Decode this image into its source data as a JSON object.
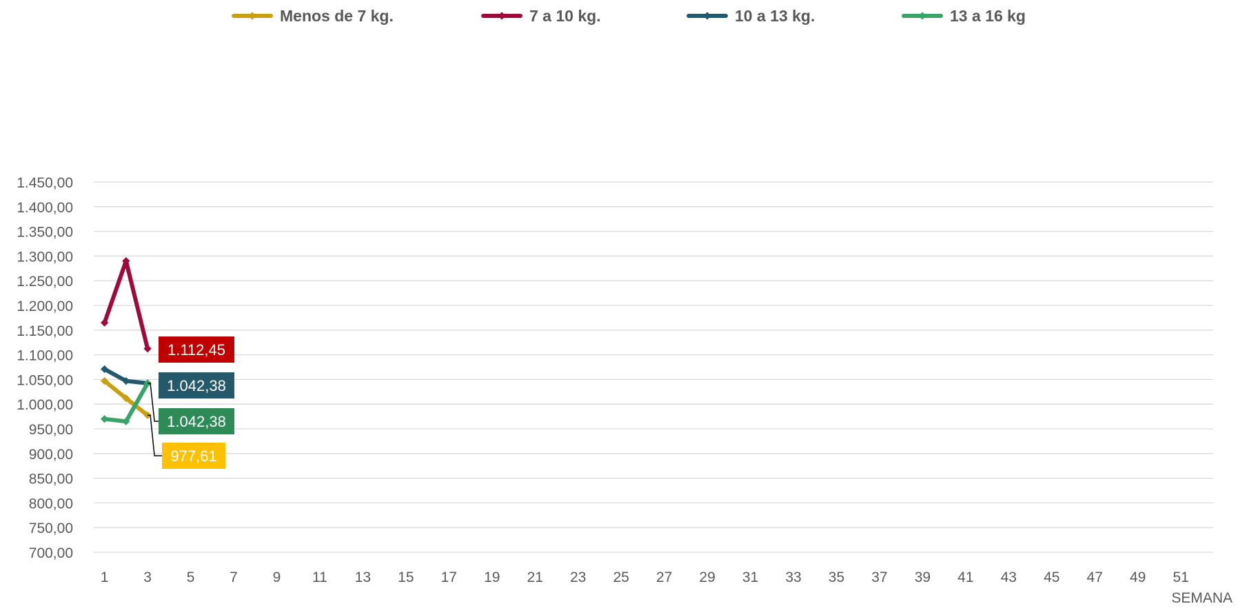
{
  "chart_data": {
    "type": "line",
    "title": "",
    "xlabel": "SEMANA",
    "ylabel": "",
    "ylim": [
      700,
      1450
    ],
    "yticks": [
      700,
      750,
      800,
      850,
      900,
      950,
      1000,
      1050,
      1100,
      1150,
      1200,
      1250,
      1300,
      1350,
      1400,
      1450
    ],
    "ytick_labels": [
      "700,00",
      "750,00",
      "800,00",
      "850,00",
      "900,00",
      "950,00",
      "1.000,00",
      "1.050,00",
      "1.100,00",
      "1.150,00",
      "1.200,00",
      "1.250,00",
      "1.300,00",
      "1.350,00",
      "1.400,00",
      "1.450,00"
    ],
    "x_categories_count": 52,
    "xtick_labels": [
      "1",
      "3",
      "5",
      "7",
      "9",
      "11",
      "13",
      "15",
      "17",
      "19",
      "21",
      "23",
      "25",
      "27",
      "29",
      "31",
      "33",
      "35",
      "37",
      "39",
      "41",
      "43",
      "45",
      "47",
      "49",
      "51"
    ],
    "x": [
      1,
      2,
      3
    ],
    "grid": true,
    "legend_position": "top",
    "series": [
      {
        "name": "Menos de 7 kg.",
        "color": "#C9A011",
        "values": [
          1047.0,
          1012.0,
          977.61
        ]
      },
      {
        "name": "7 a 10 kg.",
        "color": "#A0093A",
        "values": [
          1165.0,
          1290.0,
          1112.45
        ]
      },
      {
        "name": "10 a 13 kg.",
        "color": "#23596B",
        "values": [
          1071.0,
          1047.0,
          1042.38
        ]
      },
      {
        "name": "13 a 16 kg",
        "color": "#3AA36A",
        "values": [
          970.0,
          965.0,
          1042.38
        ]
      }
    ],
    "data_labels": [
      {
        "series": "7 a 10 kg.",
        "text": "1.112,45",
        "bg": "#C00000"
      },
      {
        "series": "10 a 13 kg.",
        "text": "1.042,38",
        "bg": "#23596B"
      },
      {
        "series": "13 a 16 kg",
        "text": "1.042,38",
        "bg": "#2E8B57"
      },
      {
        "series": "Menos de 7 kg.",
        "text": "977,61",
        "bg": "#FFC000"
      }
    ]
  }
}
